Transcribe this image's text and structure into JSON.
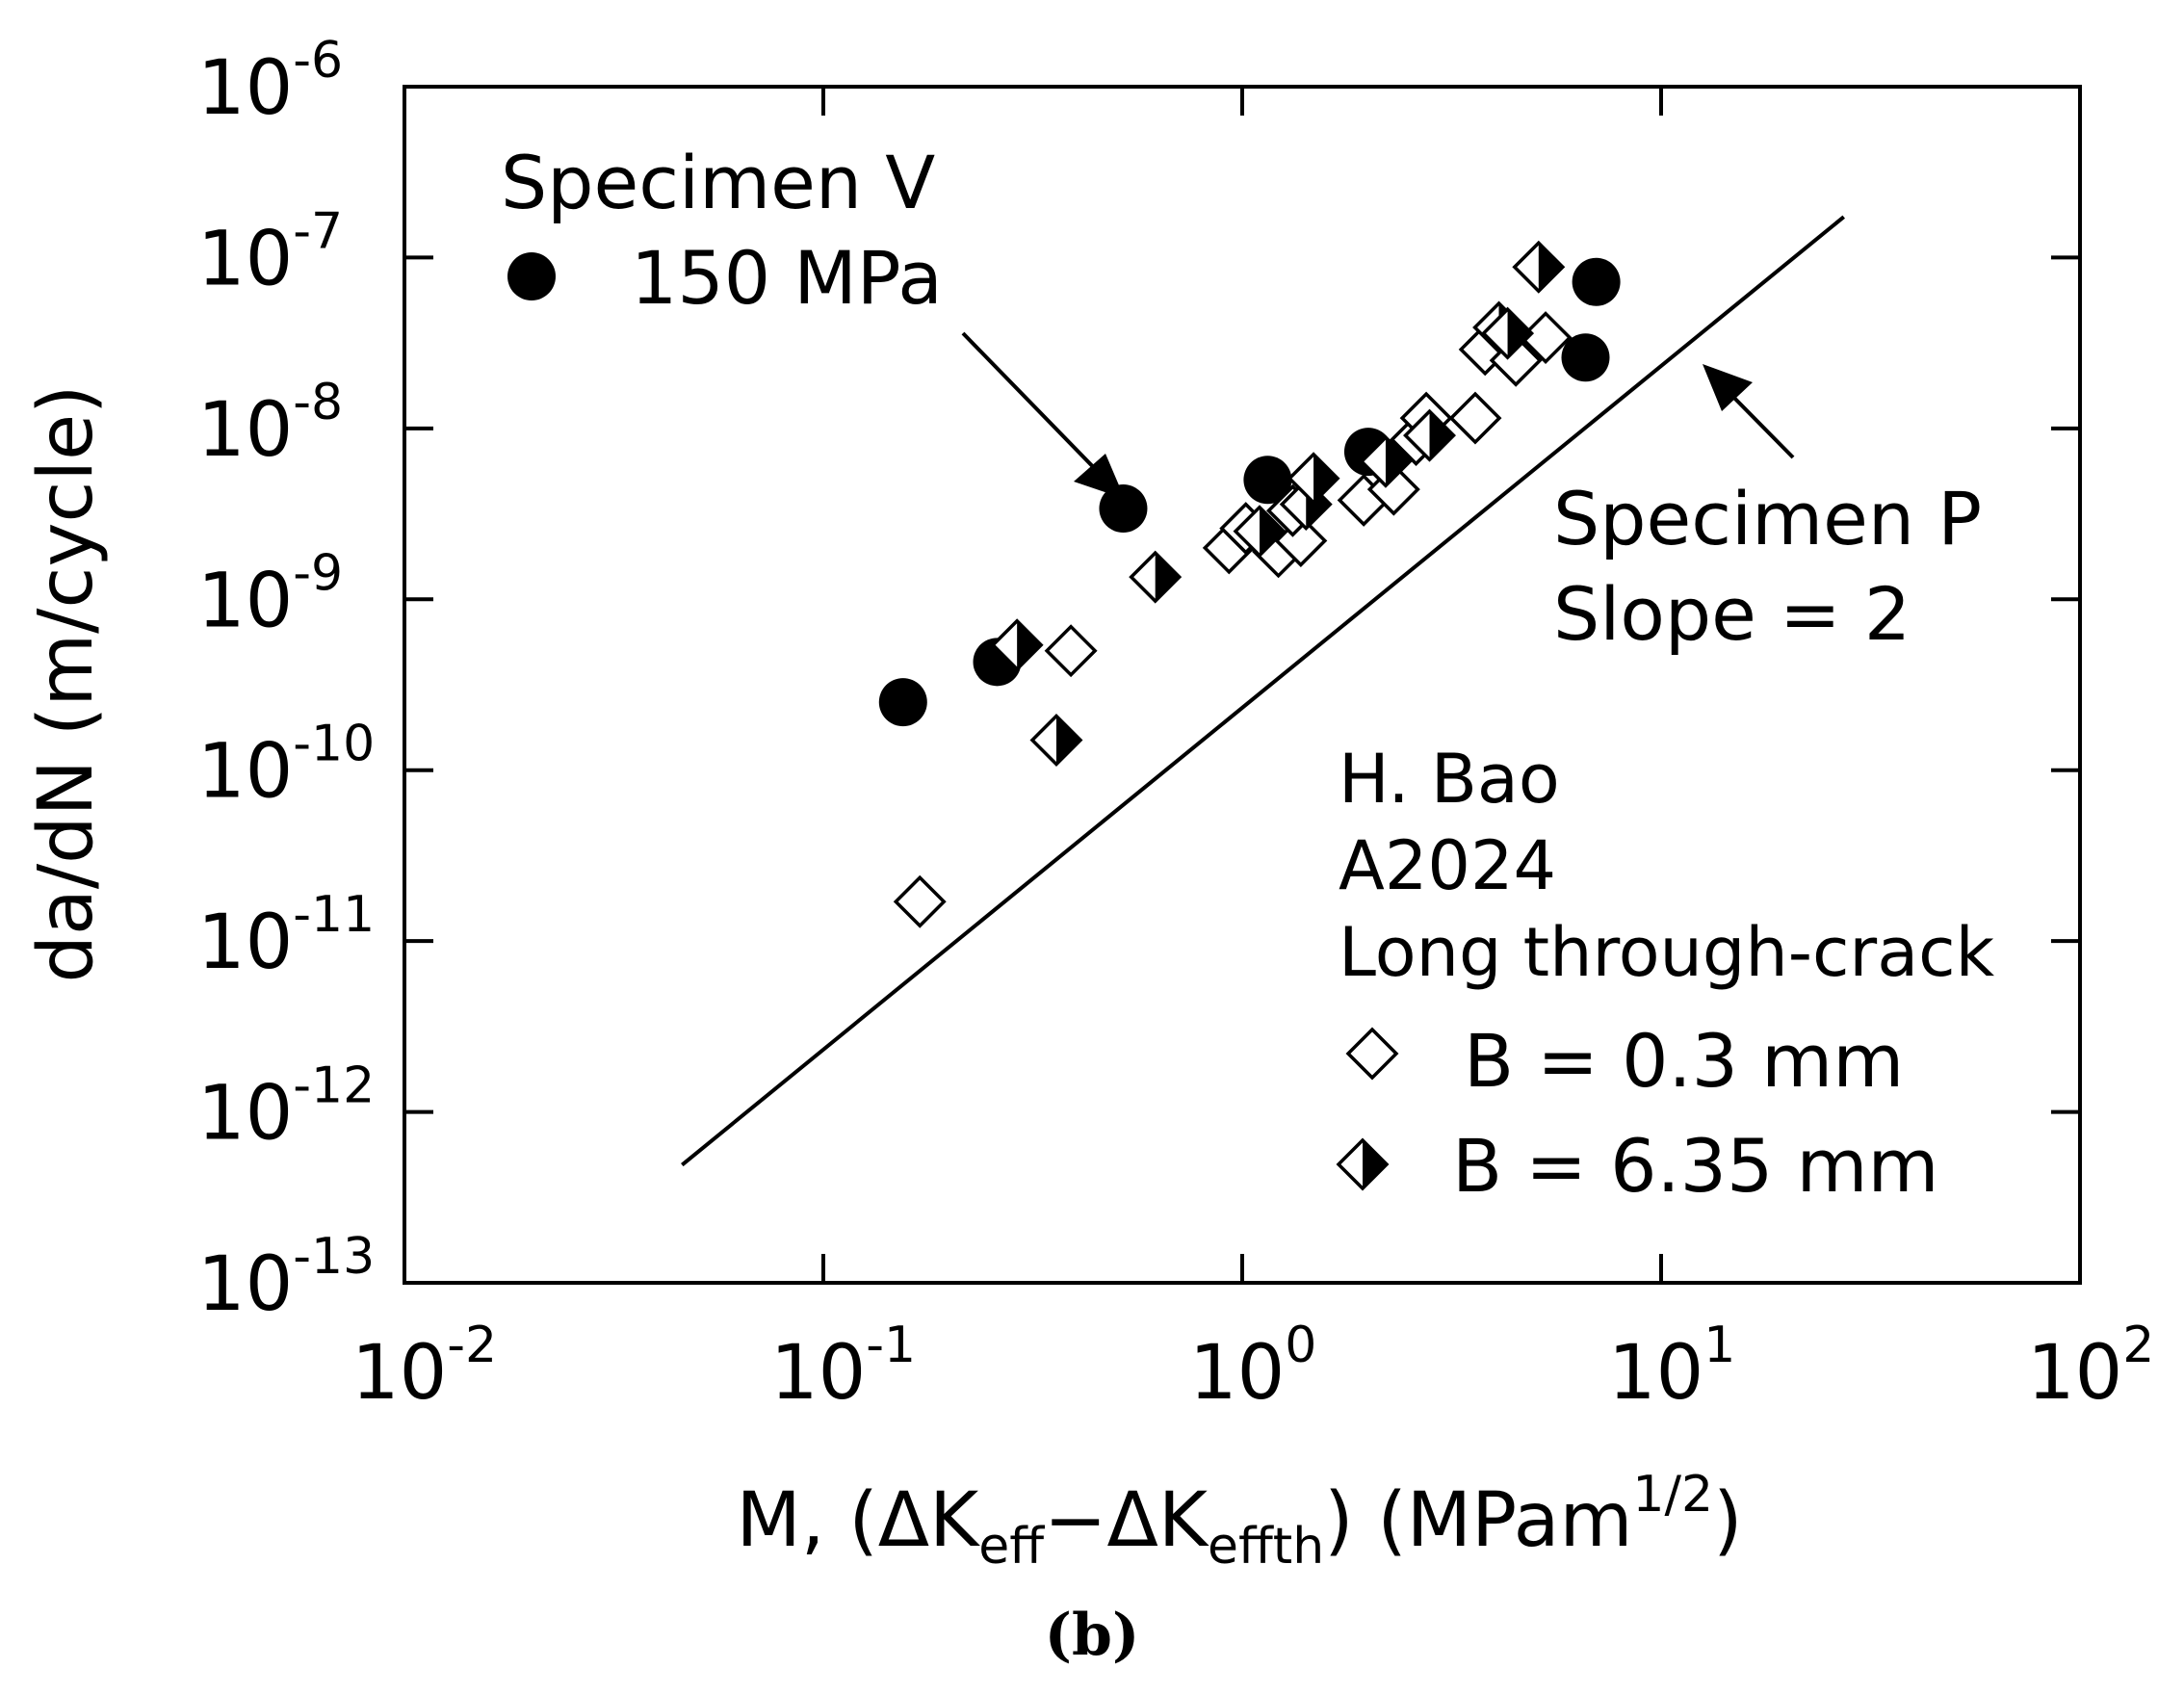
{
  "chart_data": {
    "type": "scatter",
    "x_scale": "log",
    "y_scale": "log",
    "xlim": [
      0.01,
      100
    ],
    "ylim": [
      1e-13,
      1e-06
    ],
    "x_ticks": [
      {
        "value": 0.01,
        "base": "10",
        "exp": "-2"
      },
      {
        "value": 0.1,
        "base": "10",
        "exp": "-1"
      },
      {
        "value": 1,
        "base": "10",
        "exp": "0"
      },
      {
        "value": 10,
        "base": "10",
        "exp": "1"
      },
      {
        "value": 100,
        "base": "10",
        "exp": "2"
      }
    ],
    "y_ticks": [
      {
        "value": 1e-06,
        "base": "10",
        "exp": "-6"
      },
      {
        "value": 1e-07,
        "base": "10",
        "exp": "-7"
      },
      {
        "value": 1e-08,
        "base": "10",
        "exp": "-8"
      },
      {
        "value": 1e-09,
        "base": "10",
        "exp": "-9"
      },
      {
        "value": 1e-10,
        "base": "10",
        "exp": "-10"
      },
      {
        "value": 1e-11,
        "base": "10",
        "exp": "-11"
      },
      {
        "value": 1e-12,
        "base": "10",
        "exp": "-12"
      },
      {
        "value": 1e-13,
        "base": "10",
        "exp": "-13"
      }
    ],
    "ylabel": "da/dN (m/cycle)",
    "xlabel": {
      "prefix": "M, (ΔK",
      "sub1": "eff",
      "mid": "−ΔK",
      "sub2": "effth",
      "suffix": ")  (MPam",
      "sup": "1/2",
      "close": ")"
    },
    "caption": "(b)",
    "series": [
      {
        "name": "Specimen V 150 MPa",
        "marker": "filled-circle",
        "points": [
          {
            "x": 0.155,
            "y": 2.5e-10
          },
          {
            "x": 0.26,
            "y": 4.3e-10
          },
          {
            "x": 0.52,
            "y": 3.4e-09
          },
          {
            "x": 1.15,
            "y": 5e-09
          },
          {
            "x": 2.0,
            "y": 7.3e-09
          },
          {
            "x": 6.6,
            "y": 2.6e-08
          },
          {
            "x": 7.0,
            "y": 7.2e-08
          }
        ]
      },
      {
        "name": "B = 0.3 mm",
        "marker": "open-diamond",
        "points": [
          {
            "x": 0.17,
            "y": 1.7e-11
          },
          {
            "x": 0.39,
            "y": 5e-10
          },
          {
            "x": 0.93,
            "y": 2e-09
          },
          {
            "x": 1.02,
            "y": 2.6e-09
          },
          {
            "x": 1.22,
            "y": 1.9e-09
          },
          {
            "x": 1.38,
            "y": 2.2e-09
          },
          {
            "x": 1.32,
            "y": 3.3e-09
          },
          {
            "x": 1.95,
            "y": 3.8e-09
          },
          {
            "x": 2.3,
            "y": 4.4e-09
          },
          {
            "x": 2.6,
            "y": 8.6e-09
          },
          {
            "x": 2.75,
            "y": 1.15e-08
          },
          {
            "x": 3.6,
            "y": 1.15e-08
          },
          {
            "x": 3.8,
            "y": 2.9e-08
          },
          {
            "x": 4.5,
            "y": 2.5e-08
          },
          {
            "x": 5.3,
            "y": 3.4e-08
          }
        ]
      },
      {
        "name": "B = 6.35 mm",
        "marker": "half-filled-diamond",
        "points": [
          {
            "x": 0.29,
            "y": 5.4e-10
          },
          {
            "x": 0.36,
            "y": 1.5e-10
          },
          {
            "x": 0.62,
            "y": 1.35e-09
          },
          {
            "x": 1.1,
            "y": 2.5e-09
          },
          {
            "x": 1.42,
            "y": 3.6e-09
          },
          {
            "x": 1.48,
            "y": 5.1e-09
          },
          {
            "x": 2.2,
            "y": 6.4e-09
          },
          {
            "x": 2.8,
            "y": 9.1e-09
          },
          {
            "x": 4.1,
            "y": 3.9e-08
          },
          {
            "x": 4.3,
            "y": 3.6e-08
          },
          {
            "x": 5.1,
            "y": 8.8e-08
          }
        ]
      }
    ],
    "reference_line": {
      "name": "Specimen P Slope = 2",
      "x_start": 0.046,
      "x_end": 27.3,
      "y_start": 4.9e-13,
      "y_end": 1.73e-07
    },
    "annotations": {
      "specimen_v": [
        "Specimen V",
        "150 MPa"
      ],
      "specimen_p": [
        "Specimen P",
        "Slope = 2"
      ],
      "legend_header": [
        "H. Bao",
        "A2024",
        "Long through-crack"
      ],
      "legend_open_label": "B = 0.3 mm",
      "legend_half_label": "B = 6.35 mm"
    }
  }
}
